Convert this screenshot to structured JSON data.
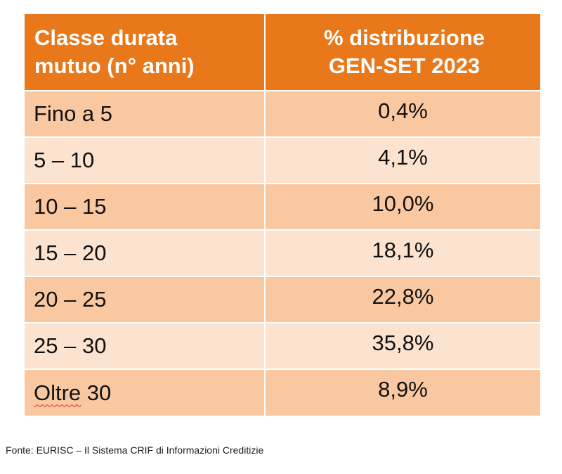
{
  "chart_data": {
    "type": "table",
    "columns": [
      "Classe durata mutuo (n° anni)",
      "% distribuzione GEN-SET 2023"
    ],
    "header": {
      "col1_line1": "Classe durata",
      "col1_line2": "mutuo (n° anni)",
      "col2_line1": "% distribuzione",
      "col2_line2": "GEN-SET 2023"
    },
    "rows": [
      {
        "classe": "Fino a 5",
        "percent": "0,4%",
        "value": 0.4
      },
      {
        "classe": "5 – 10",
        "percent": "4,1%",
        "value": 4.1
      },
      {
        "classe": "10 – 15",
        "percent": "10,0%",
        "value": 10.0
      },
      {
        "classe": "15 – 20",
        "percent": "18,1%",
        "value": 18.1
      },
      {
        "classe": "20 – 25",
        "percent": "22,8%",
        "value": 22.8
      },
      {
        "classe": "25 – 30",
        "percent": "35,8%",
        "value": 35.8
      },
      {
        "classe_word": "Oltre",
        "classe_rest": " 30",
        "percent": "8,9%",
        "value": 8.9
      }
    ],
    "colors": {
      "header": "#e8781a",
      "row_dark": "#f9c8a1",
      "row_light": "#fbe3cf",
      "spellcheck": "#d92b2b"
    }
  },
  "source": "Fonte: EURISC – Il Sistema CRIF di Informazioni Creditizie"
}
